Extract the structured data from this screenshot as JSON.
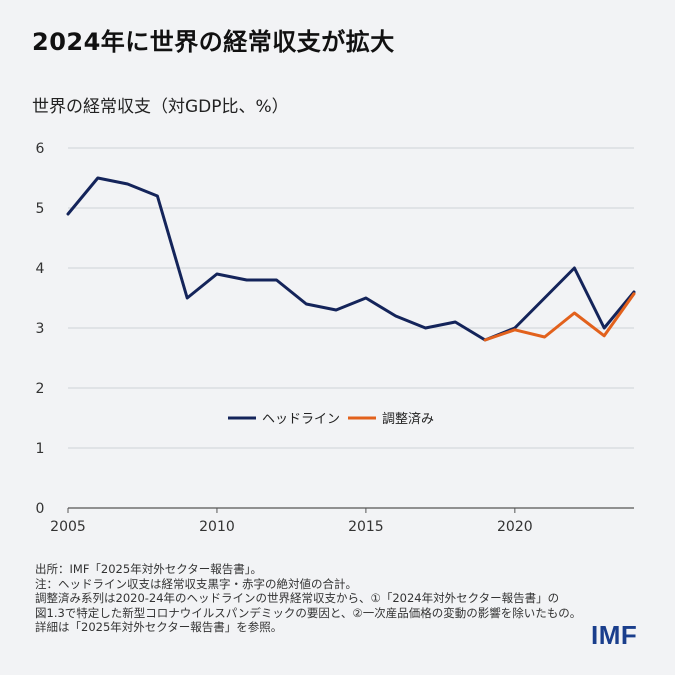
{
  "title": "2024年に世界の経常収支が拡大",
  "colors": {
    "headline": "#14245a",
    "adjusted": "#e2611c",
    "grid": "#cfd3d8",
    "logo": "#1a3e8c"
  },
  "chart_data": {
    "type": "line",
    "ylabel": "世界の経常収支（対GDP比、%）",
    "ylim": [
      0,
      6
    ],
    "yticks": [
      0,
      1,
      2,
      3,
      4,
      5,
      6
    ],
    "xlim": [
      2005,
      2024
    ],
    "xticks": [
      2005,
      2010,
      2015,
      2020
    ],
    "grid": true,
    "legend_position": "center",
    "series": [
      {
        "name": "ヘッドライン",
        "color": "#14245a",
        "x": [
          2005,
          2006,
          2007,
          2008,
          2009,
          2010,
          2011,
          2012,
          2013,
          2014,
          2015,
          2016,
          2017,
          2018,
          2019,
          2020,
          2021,
          2022,
          2023,
          2024
        ],
        "values": [
          4.9,
          5.5,
          5.4,
          5.2,
          3.5,
          3.9,
          3.8,
          3.8,
          3.4,
          3.3,
          3.5,
          3.2,
          3.0,
          3.1,
          2.8,
          3.0,
          3.5,
          4.0,
          3.0,
          3.6
        ]
      },
      {
        "name": "調整済み",
        "color": "#e2611c",
        "x": [
          2019,
          2020,
          2021,
          2022,
          2023,
          2024
        ],
        "values": [
          2.8,
          2.97,
          2.85,
          3.25,
          2.87,
          3.57
        ]
      }
    ]
  },
  "footer": {
    "lines": [
      "出所：IMF「2025年対外セクター報告書」。",
      "注：ヘッドライン収支は経常収支黒字・赤字の絶対値の合計。",
      "調整済み系列は2020-24年のヘッドラインの世界経常収支から、①「2024年対外セクター報告書」の",
      "図1.3で特定した新型コロナウイルスパンデミックの要因と、②一次産品価格の変動の影響を除いたもの。",
      "詳細は「2025年対外セクター報告書」を参照。"
    ]
  },
  "logo": "IMF"
}
